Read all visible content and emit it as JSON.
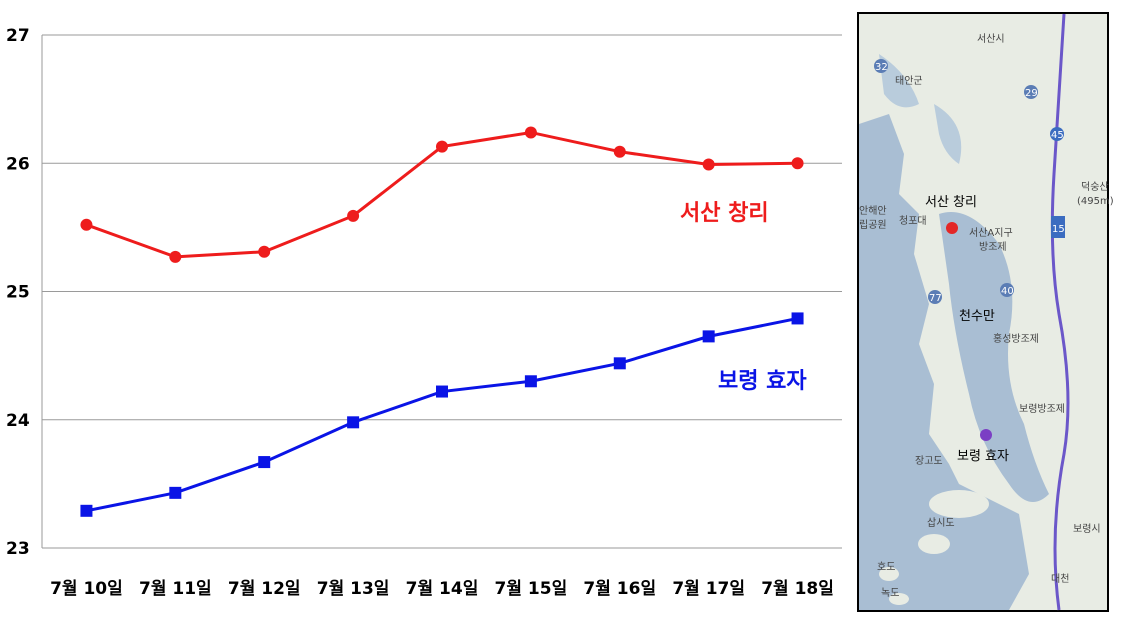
{
  "chart_data": {
    "type": "line",
    "categories": [
      "7월 10일",
      "7월 11일",
      "7월 12일",
      "7월 13일",
      "7월 14일",
      "7월 15일",
      "7월 16일",
      "7월 17일",
      "7월 18일"
    ],
    "ylim": [
      23,
      27
    ],
    "yticks": [
      "23",
      "24",
      "25",
      "26",
      "27"
    ],
    "grid": true,
    "series": [
      {
        "name": "서산 창리",
        "color": "#ee1c1c",
        "marker": "circle",
        "values": [
          25.52,
          25.27,
          25.31,
          25.59,
          26.13,
          26.24,
          26.09,
          25.99,
          26.0
        ]
      },
      {
        "name": "보령 효자",
        "color": "#0a14e6",
        "marker": "square",
        "values": [
          23.29,
          23.43,
          23.67,
          23.98,
          24.22,
          24.3,
          24.44,
          24.65,
          24.79
        ]
      }
    ]
  },
  "map": {
    "labels": {
      "seosan_city": "서산시",
      "taean": "태안군",
      "changri": "서산 창리",
      "cheonsuman": "천수만",
      "hyoja": "보령 효자",
      "boryeong_city": "보령시",
      "seosan_a": "서산A지구",
      "bangjoje": "방조제",
      "hongseong": "홍성방조제",
      "boryeong_dam": "보령방조제",
      "janggodo": "장고도",
      "sapsido": "삽시도",
      "hodo": "호도",
      "nokdo": "녹도",
      "deoksungsan": "덕숭산",
      "deoksungsan_h": "(495m)",
      "cheongpo": "청포대",
      "haean": "안해안",
      "gongwon": "립공원",
      "daecheon": "대천",
      "route_32": "32",
      "route_29": "29",
      "route_45": "45",
      "route_77": "77",
      "route_40": "40",
      "route_15": "15"
    }
  }
}
